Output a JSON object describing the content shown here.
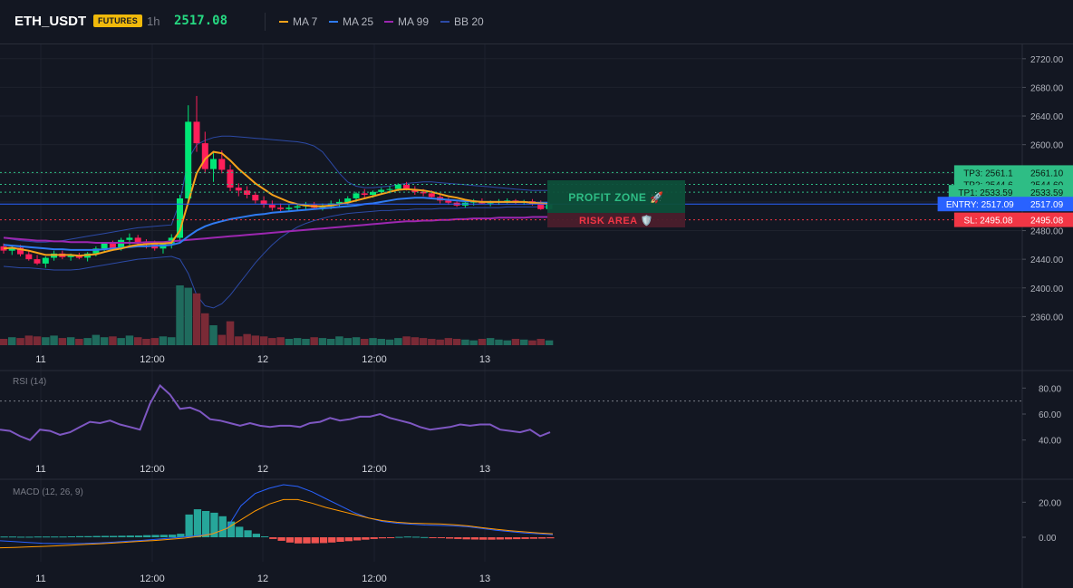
{
  "header": {
    "symbol": "ETH_USDT",
    "badge": "FUTURES",
    "timeframe": "1h",
    "price": "2517.08",
    "legend": [
      {
        "label": "MA 7",
        "color": "#f7a21b"
      },
      {
        "label": "MA 25",
        "color": "#2f7bf2"
      },
      {
        "label": "MA 99",
        "color": "#9c27b0"
      },
      {
        "label": "BB 20",
        "color": "#2c4aa6"
      }
    ]
  },
  "zones": {
    "profit": "PROFIT ZONE 🚀",
    "risk": "RISK AREA 🛡️"
  },
  "levels": [
    {
      "tag": "TP3: 2561.1",
      "price_label": "2561.10",
      "price": 2561.1,
      "color": "#2ebd85",
      "text_color": "#0b1a12"
    },
    {
      "tag": "TP2: 2544.6",
      "price_label": "2544.60",
      "price": 2544.6,
      "color": "#2ebd85",
      "text_color": "#0b1a12"
    },
    {
      "tag": "TP1: 2533.59",
      "price_label": "2533.59",
      "price": 2533.59,
      "color": "#2ebd85",
      "text_color": "#0b1a12"
    },
    {
      "tag": "ENTRY: 2517.09",
      "price_label": "2517.09",
      "price": 2517.09,
      "color": "#2962ff",
      "text_color": "#ffffff"
    },
    {
      "tag": "SL: 2495.08",
      "price_label": "2495.08",
      "price": 2495.08,
      "color": "#f23645",
      "text_color": "#ffffff"
    }
  ],
  "time_labels": [
    "11",
    "12:00",
    "12",
    "12:00",
    "13"
  ],
  "panes": {
    "rsi_title": "RSI (14)",
    "macd_title": "MACD (12, 26, 9)"
  },
  "chart_data": [
    {
      "type": "candlestick",
      "title": "ETH_USDT 1h",
      "ylim": [
        2320,
        2740
      ],
      "y_ticks": [
        "2720.00",
        "2680.00",
        "2640.00",
        "2600.00",
        "2560.00",
        "2520.00",
        "2480.00",
        "2440.00",
        "2400.00",
        "2360.00"
      ],
      "candles": [
        [
          2458,
          2462,
          2448,
          2452
        ],
        [
          2452,
          2458,
          2446,
          2456
        ],
        [
          2456,
          2460,
          2444,
          2447
        ],
        [
          2447,
          2451,
          2438,
          2440
        ],
        [
          2440,
          2446,
          2432,
          2434
        ],
        [
          2434,
          2444,
          2428,
          2442
        ],
        [
          2442,
          2452,
          2438,
          2448
        ],
        [
          2448,
          2452,
          2440,
          2443
        ],
        [
          2443,
          2448,
          2438,
          2445
        ],
        [
          2445,
          2449,
          2440,
          2442
        ],
        [
          2442,
          2450,
          2437,
          2448
        ],
        [
          2448,
          2458,
          2444,
          2455
        ],
        [
          2455,
          2464,
          2450,
          2462
        ],
        [
          2462,
          2466,
          2452,
          2456
        ],
        [
          2456,
          2470,
          2452,
          2467
        ],
        [
          2467,
          2476,
          2460,
          2470
        ],
        [
          2470,
          2474,
          2460,
          2463
        ],
        [
          2463,
          2468,
          2455,
          2461
        ],
        [
          2461,
          2466,
          2452,
          2455
        ],
        [
          2455,
          2465,
          2448,
          2462
        ],
        [
          2462,
          2475,
          2455,
          2470
        ],
        [
          2470,
          2530,
          2462,
          2525
        ],
        [
          2525,
          2655,
          2518,
          2632
        ],
        [
          2632,
          2668,
          2590,
          2602
        ],
        [
          2602,
          2618,
          2560,
          2566
        ],
        [
          2566,
          2590,
          2548,
          2580
        ],
        [
          2580,
          2592,
          2560,
          2565
        ],
        [
          2565,
          2572,
          2535,
          2540
        ],
        [
          2540,
          2546,
          2528,
          2536
        ],
        [
          2536,
          2542,
          2525,
          2530
        ],
        [
          2530,
          2534,
          2518,
          2522
        ],
        [
          2522,
          2528,
          2512,
          2516
        ],
        [
          2516,
          2522,
          2508,
          2512
        ],
        [
          2512,
          2518,
          2506,
          2510
        ],
        [
          2510,
          2516,
          2506,
          2512
        ],
        [
          2512,
          2516,
          2508,
          2514
        ],
        [
          2514,
          2520,
          2510,
          2516
        ],
        [
          2516,
          2520,
          2510,
          2512
        ],
        [
          2512,
          2518,
          2508,
          2514
        ],
        [
          2514,
          2522,
          2510,
          2518
        ],
        [
          2518,
          2524,
          2512,
          2520
        ],
        [
          2520,
          2528,
          2516,
          2525
        ],
        [
          2525,
          2534,
          2520,
          2532
        ],
        [
          2532,
          2538,
          2526,
          2530
        ],
        [
          2530,
          2536,
          2526,
          2534
        ],
        [
          2534,
          2540,
          2530,
          2537
        ],
        [
          2537,
          2542,
          2532,
          2538
        ],
        [
          2538,
          2546,
          2535,
          2544
        ],
        [
          2544,
          2548,
          2536,
          2538
        ],
        [
          2538,
          2542,
          2530,
          2534
        ],
        [
          2534,
          2538,
          2528,
          2532
        ],
        [
          2532,
          2536,
          2524,
          2527
        ],
        [
          2527,
          2530,
          2518,
          2522
        ],
        [
          2522,
          2526,
          2516,
          2519
        ],
        [
          2519,
          2523,
          2513,
          2515
        ],
        [
          2515,
          2521,
          2512,
          2519
        ],
        [
          2519,
          2524,
          2515,
          2521
        ],
        [
          2521,
          2525,
          2517,
          2518
        ],
        [
          2518,
          2522,
          2514,
          2520
        ],
        [
          2520,
          2524,
          2516,
          2521
        ],
        [
          2521,
          2525,
          2518,
          2522
        ],
        [
          2522,
          2524,
          2517,
          2519
        ],
        [
          2519,
          2523,
          2516,
          2521
        ],
        [
          2521,
          2524,
          2515,
          2517
        ],
        [
          2517,
          2522,
          2509,
          2510
        ],
        [
          2510,
          2520,
          2508,
          2517
        ]
      ],
      "volume": [
        8,
        10,
        9,
        12,
        11,
        10,
        12,
        9,
        10,
        8,
        9,
        13,
        10,
        11,
        9,
        12,
        10,
        8,
        9,
        11,
        10,
        75,
        72,
        65,
        40,
        25,
        13,
        30,
        11,
        14,
        12,
        11,
        9,
        10,
        8,
        9,
        8,
        10,
        9,
        8,
        11,
        9,
        10,
        8,
        9,
        8,
        7,
        9,
        11,
        10,
        9,
        8,
        7,
        9,
        8,
        7,
        6,
        8,
        9,
        7,
        6,
        8,
        7,
        6,
        8,
        6
      ],
      "ma7": [
        2455,
        2456,
        2454,
        2452,
        2449,
        2446,
        2446,
        2446,
        2446,
        2445,
        2446,
        2447,
        2450,
        2453,
        2455,
        2458,
        2460,
        2461,
        2462,
        2462,
        2463,
        2480,
        2520,
        2560,
        2580,
        2590,
        2588,
        2578,
        2566,
        2556,
        2546,
        2538,
        2530,
        2525,
        2520,
        2517,
        2515,
        2514,
        2514,
        2515,
        2517,
        2519,
        2522,
        2525,
        2528,
        2531,
        2534,
        2537,
        2538,
        2537,
        2536,
        2534,
        2531,
        2528,
        2526,
        2523,
        2521,
        2520,
        2520,
        2520,
        2520,
        2520,
        2520,
        2519,
        2518,
        2517
      ],
      "ma25": [
        2460,
        2459,
        2458,
        2457,
        2456,
        2455,
        2454,
        2454,
        2453,
        2453,
        2453,
        2453,
        2454,
        2455,
        2456,
        2457,
        2458,
        2458,
        2459,
        2459,
        2460,
        2463,
        2472,
        2480,
        2486,
        2490,
        2493,
        2496,
        2498,
        2500,
        2502,
        2503,
        2505,
        2506,
        2507,
        2508,
        2509,
        2510,
        2511,
        2512,
        2513,
        2514,
        2515,
        2517,
        2518,
        2520,
        2522,
        2524,
        2525,
        2526,
        2526,
        2525,
        2524,
        2523,
        2522,
        2521,
        2521,
        2520,
        2520,
        2520,
        2520,
        2520,
        2520,
        2519,
        2519,
        2519
      ],
      "ma99": [
        2470,
        2469,
        2468,
        2467,
        2466,
        2466,
        2465,
        2465,
        2464,
        2464,
        2464,
        2463,
        2463,
        2463,
        2463,
        2463,
        2463,
        2464,
        2464,
        2464,
        2465,
        2466,
        2467,
        2468,
        2469,
        2470,
        2471,
        2472,
        2473,
        2474,
        2475,
        2476,
        2477,
        2478,
        2479,
        2480,
        2481,
        2482,
        2483,
        2484,
        2485,
        2486,
        2487,
        2488,
        2489,
        2490,
        2491,
        2492,
        2493,
        2493,
        2494,
        2494,
        2495,
        2495,
        2496,
        2496,
        2497,
        2497,
        2497,
        2498,
        2498,
        2498,
        2498,
        2499,
        2499,
        2499
      ],
      "bb_upper": [
        2470,
        2468,
        2466,
        2465,
        2464,
        2464,
        2465,
        2466,
        2468,
        2470,
        2472,
        2474,
        2476,
        2478,
        2480,
        2482,
        2484,
        2485,
        2486,
        2487,
        2488,
        2520,
        2580,
        2600,
        2606,
        2610,
        2612,
        2612,
        2611,
        2610,
        2609,
        2608,
        2607,
        2606,
        2605,
        2604,
        2602,
        2598,
        2590,
        2575,
        2560,
        2548,
        2542,
        2540,
        2540,
        2541,
        2542,
        2544,
        2546,
        2547,
        2548,
        2548,
        2547,
        2546,
        2545,
        2544,
        2543,
        2542,
        2541,
        2540,
        2539,
        2538,
        2537,
        2536,
        2536,
        2536
      ],
      "bb_lower": [
        2430,
        2429,
        2428,
        2428,
        2427,
        2426,
        2425,
        2425,
        2425,
        2426,
        2428,
        2430,
        2432,
        2434,
        2436,
        2438,
        2440,
        2441,
        2442,
        2443,
        2444,
        2440,
        2420,
        2390,
        2375,
        2372,
        2378,
        2390,
        2405,
        2420,
        2435,
        2448,
        2460,
        2470,
        2478,
        2485,
        2490,
        2494,
        2497,
        2500,
        2502,
        2504,
        2505,
        2506,
        2507,
        2508,
        2508,
        2509,
        2509,
        2510,
        2510,
        2510,
        2511,
        2511,
        2511,
        2512,
        2512,
        2512,
        2512,
        2512,
        2513,
        2513,
        2513,
        2513,
        2513,
        2513
      ]
    },
    {
      "type": "line",
      "title": "RSI (14)",
      "ylim": [
        30,
        90
      ],
      "y_ticks": [
        "80.00",
        "60.00",
        "40.00"
      ],
      "overbought": 70,
      "values": [
        48,
        47,
        43,
        40,
        48,
        47,
        44,
        46,
        50,
        54,
        53,
        55,
        52,
        50,
        48,
        68,
        82,
        75,
        64,
        65,
        62,
        56,
        55,
        53,
        51,
        53,
        51,
        50,
        51,
        51,
        50,
        53,
        54,
        57,
        55,
        56,
        58,
        58,
        60,
        57,
        55,
        53,
        50,
        48,
        49,
        50,
        52,
        51,
        52,
        52,
        48,
        47,
        46,
        48,
        43,
        46
      ]
    },
    {
      "type": "bar",
      "title": "MACD (12, 26, 9)",
      "ylim": [
        -15,
        30
      ],
      "y_ticks": [
        "20.00",
        "0.00"
      ],
      "histogram": [
        0.4,
        0.4,
        0.3,
        0.3,
        0.4,
        0.4,
        0.4,
        0.4,
        0.5,
        0.6,
        0.6,
        0.7,
        0.8,
        0.8,
        0.9,
        1,
        1,
        1.2,
        1.3,
        1.4,
        1.5,
        2,
        13,
        16,
        15,
        14,
        12,
        9,
        6,
        4,
        2,
        0.5,
        -1,
        -2,
        -3,
        -3.5,
        -3.5,
        -3.4,
        -3.3,
        -3,
        -2.6,
        -2.2,
        -1.8,
        -1.4,
        -1,
        -0.6,
        -0.3,
        0.2,
        0.4,
        0.3,
        0.1,
        -0.2,
        -0.5,
        -0.8,
        -1,
        -1.2,
        -1.3,
        -1.4,
        -1.4,
        -1.3,
        -1.2,
        -1.1,
        -1,
        -0.9,
        -0.8,
        -0.6
      ],
      "macd": [
        -2,
        -2.5,
        -3,
        -3.4,
        -3.6,
        -3.6,
        -3.5,
        -3.2,
        -2.8,
        -2.3,
        -1.8,
        -1.2,
        -0.5,
        0.2,
        1,
        2,
        5,
        18,
        25,
        28,
        30,
        29,
        26,
        22,
        18,
        14,
        11,
        9,
        8,
        7.5,
        7,
        6.8,
        6.5,
        6,
        5,
        4,
        3.2,
        2.5,
        2,
        1.5
      ],
      "signal": [
        -6,
        -5.8,
        -5.5,
        -5.2,
        -4.9,
        -4.5,
        -4.1,
        -3.7,
        -3.3,
        -2.8,
        -2.3,
        -1.8,
        -1.2,
        -0.5,
        0.5,
        2,
        5,
        10,
        15,
        19,
        21.5,
        21.5,
        19.5,
        17,
        15,
        13,
        11,
        9.5,
        8.6,
        8,
        7.8,
        7.6,
        7.2,
        6.5,
        5.5,
        4.6,
        3.8,
        3.1,
        2.5,
        2
      ]
    }
  ]
}
